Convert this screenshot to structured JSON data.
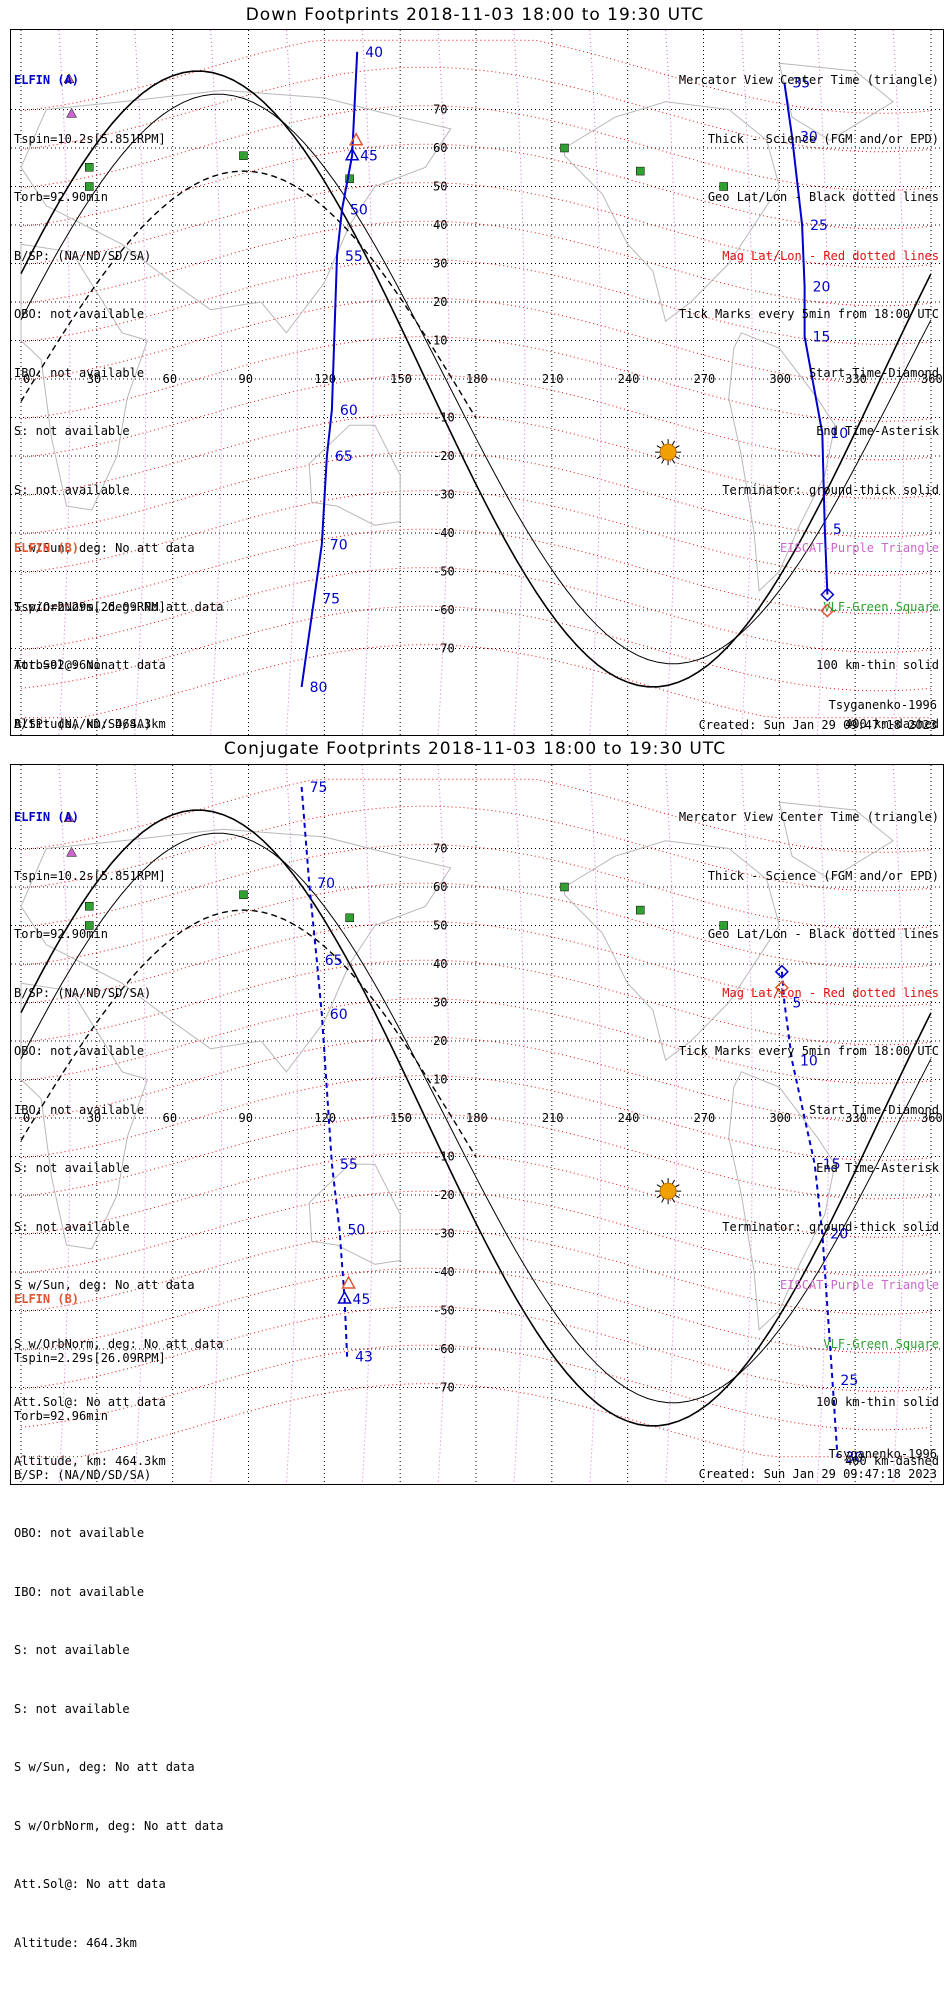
{
  "titles": {
    "top": "Down Footprints 2018-11-03 18:00 to 19:30 UTC",
    "bottom": "Conjugate Footprints 2018-11-03 18:00 to 19:30 UTC"
  },
  "legend": {
    "line1": "Mercator View Center Time (triangle)",
    "line2": "Thick - Science (FGM and/or EPD)",
    "line3": "Geo Lat/Lon - Black dotted lines",
    "line4": "Mag Lat/Lon - Red dotted lines",
    "line5": "Tick Marks every 5min from 18:00 UTC",
    "line6": "Start Time-Diamond",
    "line7": "End Time-Asterisk",
    "line8": "Terminator: ground-thick solid",
    "line9": "EISCAT-Purple Triangle",
    "line10": "VLF-Green Square",
    "line11": "100 km-thin solid",
    "line12": "400 km-dashed"
  },
  "elfin_a": {
    "name": "ELFIN (A)",
    "tspin": "Tspin=10.2s[5.851RPM]",
    "torb": "Torb=92.90min",
    "bsp": "B/SP: (NA/ND/SD/SA)",
    "obo": "OBO: not available",
    "ibo": "IBO: not available",
    "s1": "S: not available",
    "s2": "S: not available",
    "swsun": "S w/Sun, deg: No att data",
    "sworb": "S w/OrbNorm, deg: No att data",
    "attsol": "Att.Sol@: No att data",
    "alt": "Altitude, km: 464.3km"
  },
  "elfin_b": {
    "name": "ELFIN (B)",
    "tspin": "Tspin=2.29s[26.09RPM]",
    "torb": "Torb=92.96min",
    "bsp": "B/SP: (NA/ND/SD/SA)",
    "obo": "OBO: not available",
    "ibo": "IBO: not available",
    "s1": "S: not available",
    "s2": "S: not available",
    "swsun": "S w/Sun, deg: No att data",
    "sworb": "S w/OrbNorm, deg: No att data",
    "attsol": "Att.Sol@: No att data",
    "alt": "Altitude: 464.3km"
  },
  "footer": {
    "model": "Tsyganenko-1996",
    "created": "Created: Sun Jan 29 09:47:18 2023"
  },
  "axes": {
    "lon_ticks": [
      "0",
      "30",
      "60",
      "90",
      "120",
      "150",
      "180",
      "210",
      "240",
      "270",
      "300",
      "330",
      "360"
    ],
    "lat_ticks": [
      "70",
      "60",
      "50",
      "40",
      "30",
      "20",
      "10",
      "-10",
      "-20",
      "-30",
      "-40",
      "-50",
      "-60",
      "-70"
    ]
  },
  "colors": {
    "elfin_a": "#0000cc",
    "elfin_b": "#e05530",
    "vlf": "#30a030",
    "sun": "#f0a000",
    "eiscat": "#cc66cc"
  },
  "tracks": {
    "down_a": [
      {
        "m": 40,
        "lon": 133,
        "lat": 85
      },
      {
        "m": 45,
        "lon": 131,
        "lat": 58
      },
      {
        "m": 50,
        "lon": 127,
        "lat": 44
      },
      {
        "m": 55,
        "lon": 125,
        "lat": 32
      },
      {
        "m": 60,
        "lon": 123,
        "lat": -8
      },
      {
        "m": 65,
        "lon": 121,
        "lat": -20
      },
      {
        "m": 70,
        "lon": 119,
        "lat": -43
      },
      {
        "m": 75,
        "lon": 116,
        "lat": -57
      },
      {
        "m": 80,
        "lon": 111,
        "lat": -80
      }
    ],
    "down_b": [
      {
        "m": 35,
        "lon": 302,
        "lat": 77
      },
      {
        "m": 30,
        "lon": 305,
        "lat": 63
      },
      {
        "m": 25,
        "lon": 309,
        "lat": 40
      },
      {
        "m": 20,
        "lon": 310,
        "lat": 24
      },
      {
        "m": 15,
        "lon": 310,
        "lat": 11
      },
      {
        "m": 10,
        "lon": 317,
        "lat": -14
      },
      {
        "m": 5,
        "lon": 318,
        "lat": -39
      },
      {
        "m": 0,
        "lon": 319,
        "lat": -56
      }
    ],
    "conj_a": [
      {
        "m": 75,
        "lon": 111,
        "lat": 86
      },
      {
        "m": 70,
        "lon": 114,
        "lat": 61
      },
      {
        "m": 65,
        "lon": 117,
        "lat": 41
      },
      {
        "m": 60,
        "lon": 119,
        "lat": 27
      },
      {
        "m": 55,
        "lon": 123,
        "lat": -12
      },
      {
        "m": 50,
        "lon": 126,
        "lat": -29
      },
      {
        "m": 45,
        "lon": 128,
        "lat": -47
      },
      {
        "m": 43,
        "lon": 129,
        "lat": -62
      }
    ],
    "conj_b": [
      {
        "m": 0,
        "lon": 301,
        "lat": 38
      },
      {
        "m": 5,
        "lon": 302,
        "lat": 30
      },
      {
        "m": 10,
        "lon": 305,
        "lat": 15
      },
      {
        "m": 15,
        "lon": 314,
        "lat": -12
      },
      {
        "m": 20,
        "lon": 317,
        "lat": -30
      },
      {
        "m": 25,
        "lon": 321,
        "lat": -68
      },
      {
        "m": 30,
        "lon": 323,
        "lat": -88
      }
    ]
  }
}
